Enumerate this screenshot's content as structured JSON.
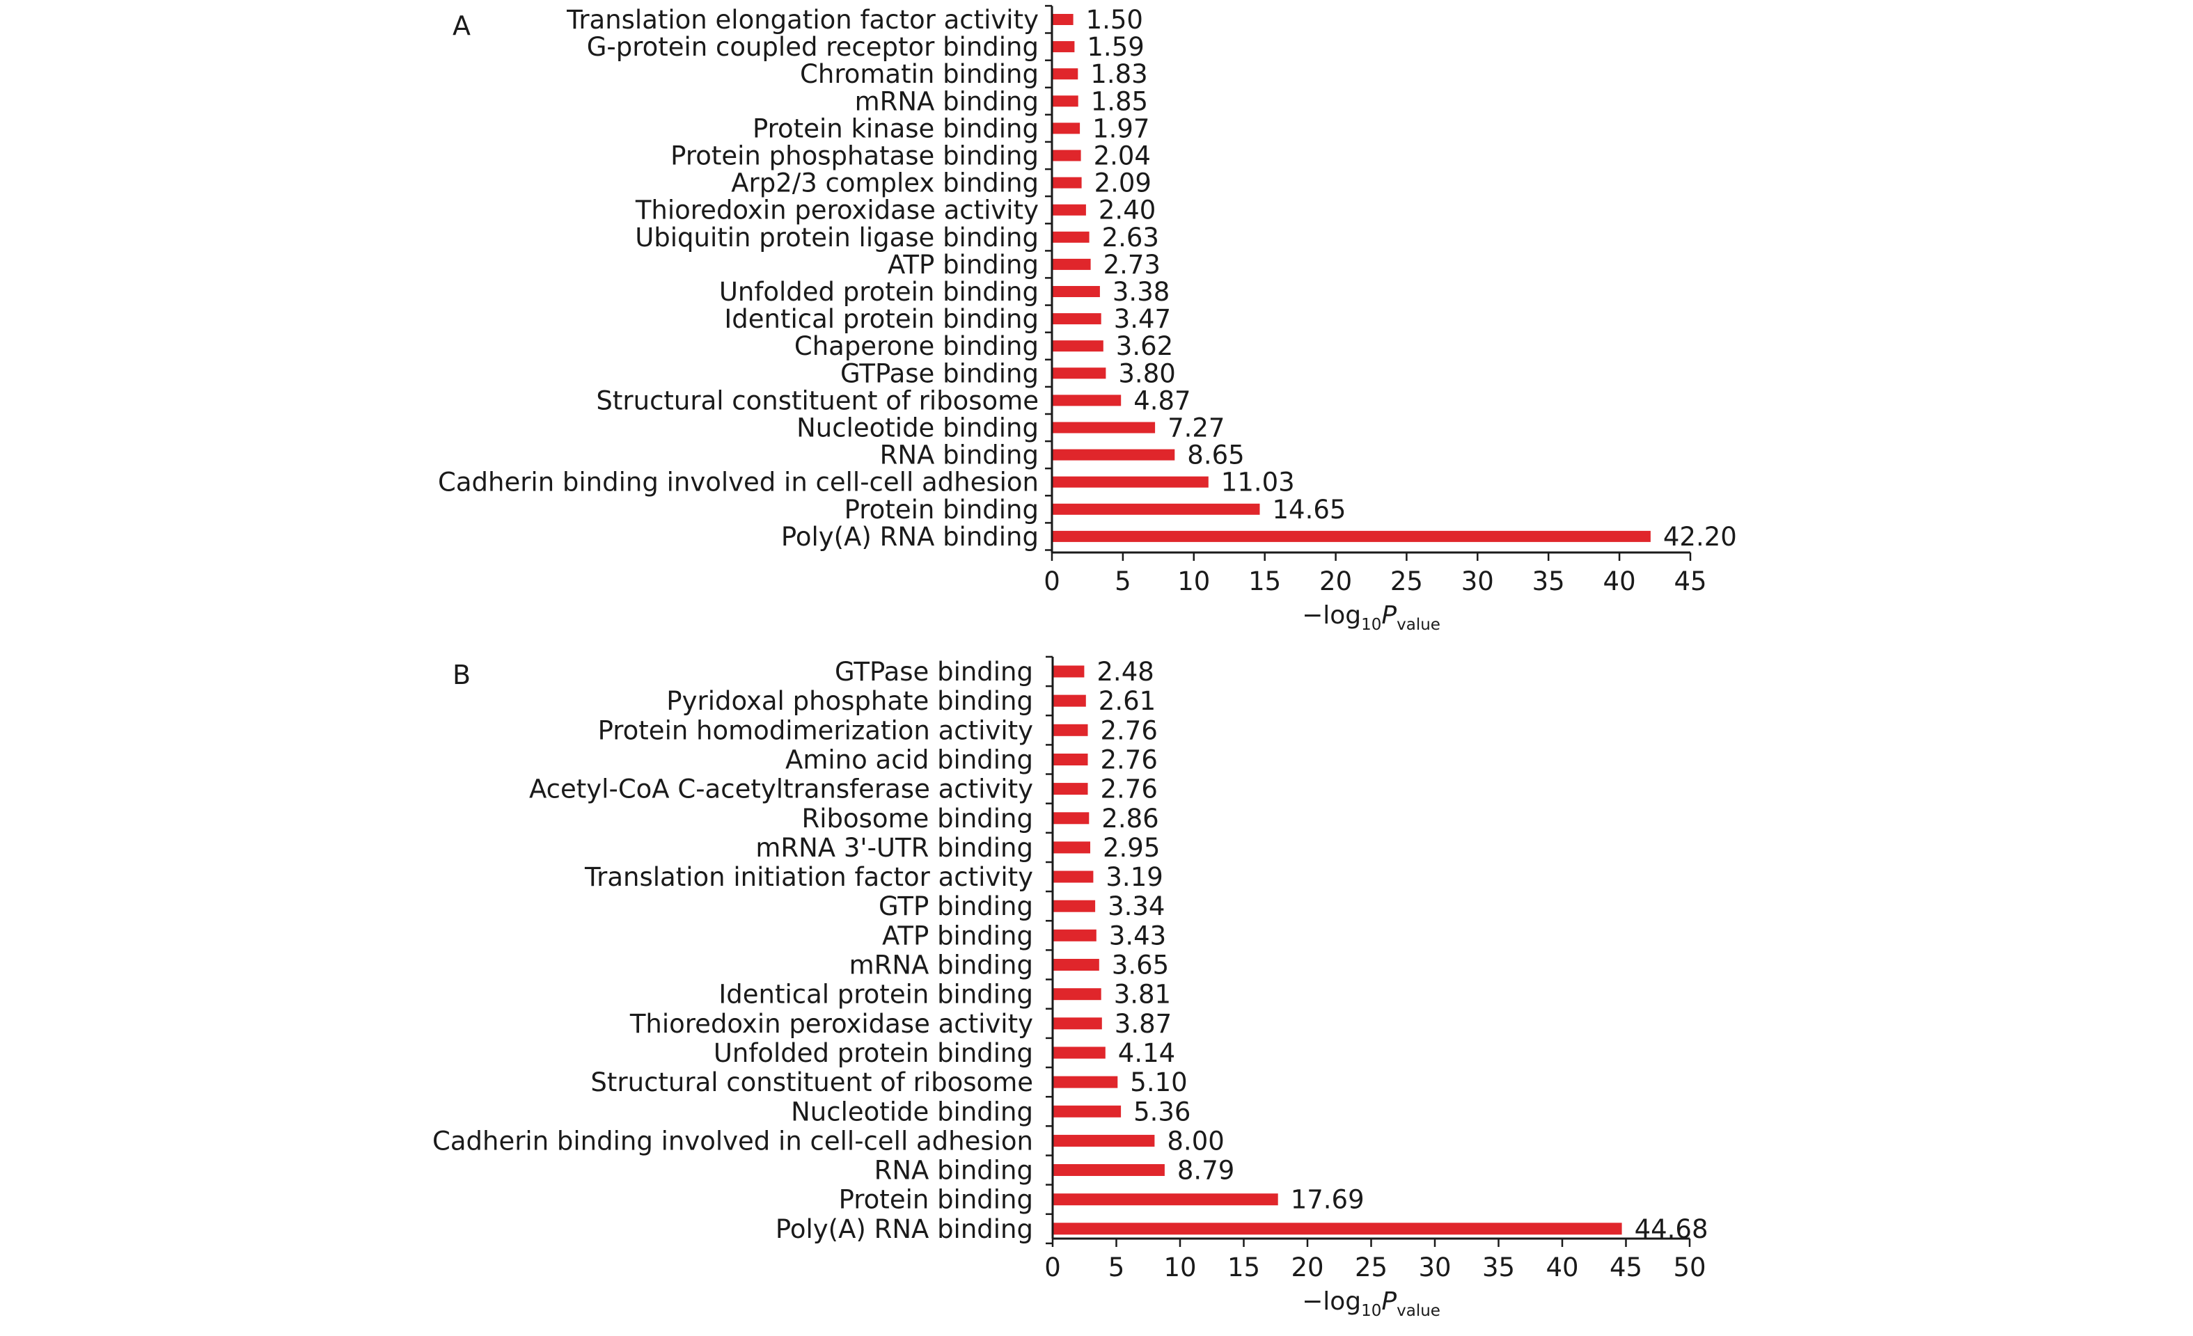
{
  "colors": {
    "bar": "#e0262b",
    "axis": "#1a1a1a"
  },
  "chart_data": [
    {
      "panel": "A",
      "type": "bar",
      "orientation": "horizontal",
      "categories": [
        "Translation elongation factor activity",
        "G-protein coupled receptor binding",
        "Chromatin binding",
        "mRNA binding",
        "Protein kinase binding",
        "Protein phosphatase binding",
        "Arp2/3 complex binding",
        "Thioredoxin peroxidase activity",
        "Ubiquitin protein ligase binding",
        "ATP binding",
        "Unfolded protein binding",
        "Identical protein binding",
        "Chaperone binding",
        "GTPase binding",
        "Structural constituent of ribosome",
        "Nucleotide binding",
        "RNA binding",
        "Cadherin binding involved in cell-cell adhesion",
        "Protein binding",
        "Poly(A) RNA binding"
      ],
      "values": [
        1.5,
        1.59,
        1.83,
        1.85,
        1.97,
        2.04,
        2.09,
        2.4,
        2.63,
        2.73,
        3.38,
        3.47,
        3.62,
        3.8,
        4.87,
        7.27,
        8.65,
        11.03,
        14.65,
        42.2
      ],
      "value_labels": [
        "1.50",
        "1.59",
        "1.83",
        "1.85",
        "1.97",
        "2.04",
        "2.09",
        "2.40",
        "2.63",
        "2.73",
        "3.38",
        "3.47",
        "3.62",
        "3.80",
        "4.87",
        "7.27",
        "8.65",
        "11.03",
        "14.65",
        "42.20"
      ],
      "xlim": [
        0,
        45
      ],
      "xticks": [
        "0",
        "5",
        "10",
        "15",
        "20",
        "25",
        "30",
        "35",
        "40",
        "45"
      ],
      "xlabel": {
        "prefix": "−log",
        "sub1": "10",
        "italic": "P",
        "sub2": "value"
      },
      "grid": false,
      "legend": "none"
    },
    {
      "panel": "B",
      "type": "bar",
      "orientation": "horizontal",
      "categories": [
        "GTPase binding",
        "Pyridoxal phosphate binding",
        "Protein homodimerization activity",
        "Amino acid binding",
        "Acetyl-CoA C-acetyltransferase activity",
        "Ribosome binding",
        "mRNA 3'-UTR binding",
        "Translation initiation factor activity",
        "GTP binding",
        "ATP binding",
        "mRNA binding",
        "Identical protein binding",
        "Thioredoxin peroxidase activity",
        "Unfolded protein binding",
        "Structural constituent of ribosome",
        "Nucleotide binding",
        "Cadherin binding involved in cell-cell adhesion",
        "RNA binding",
        "Protein binding",
        "Poly(A) RNA binding"
      ],
      "values": [
        2.48,
        2.61,
        2.76,
        2.76,
        2.76,
        2.86,
        2.95,
        3.19,
        3.34,
        3.43,
        3.65,
        3.81,
        3.87,
        4.14,
        5.1,
        5.36,
        8.0,
        8.79,
        17.69,
        44.68
      ],
      "value_labels": [
        "2.48",
        "2.61",
        "2.76",
        "2.76",
        "2.76",
        "2.86",
        "2.95",
        "3.19",
        "3.34",
        "3.43",
        "3.65",
        "3.81",
        "3.87",
        "4.14",
        "5.10",
        "5.36",
        "8.00",
        "8.79",
        "17.69",
        "44.68"
      ],
      "xlim": [
        0,
        50
      ],
      "xticks": [
        "0",
        "5",
        "10",
        "15",
        "20",
        "25",
        "30",
        "35",
        "40",
        "45",
        "50"
      ],
      "xlabel": {
        "prefix": "−log",
        "sub1": "10",
        "italic": "P",
        "sub2": "value"
      },
      "grid": false,
      "legend": "none"
    }
  ]
}
